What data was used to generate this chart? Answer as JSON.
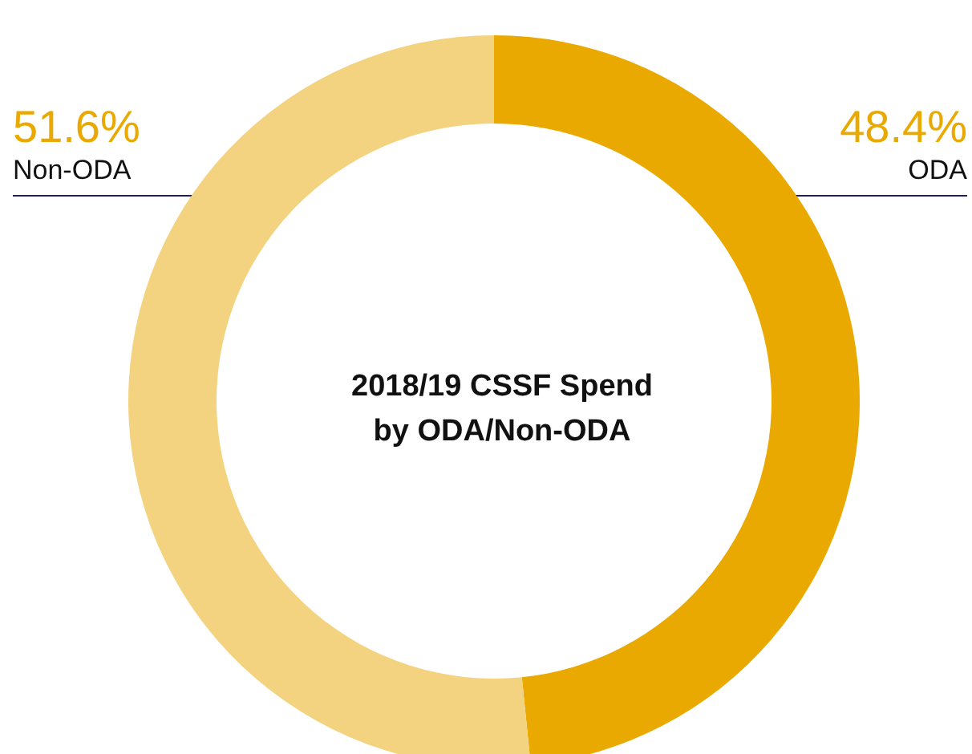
{
  "chart_data": {
    "type": "donut",
    "title": "2018/19 CSSF Spend\nby ODA/Non-ODA",
    "categories": [
      "ODA",
      "Non-ODA"
    ],
    "values": [
      48.4,
      51.6
    ],
    "colors": [
      "#e9a900",
      "#f3d37f"
    ],
    "value_labels": [
      "48.4%",
      "51.6%"
    ],
    "legend": false
  }
}
